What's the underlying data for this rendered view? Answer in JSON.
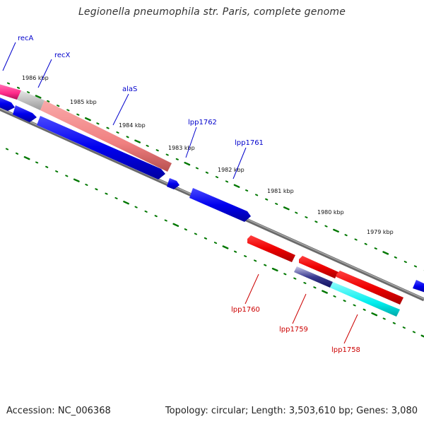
{
  "title": "Legionella pneumophila str. Paris, complete genome",
  "footer": {
    "accession": "Accession: NC_006368",
    "summary": "Topology: circular; Length: 3,503,610 bp; Genes: 3,080"
  },
  "colors": {
    "forward_cds": "#0000ee",
    "reverse_cds": "#ee0000",
    "rna": "#ff2b8a",
    "pseudo": "#c8c8c8",
    "highlight_red": "#f08080",
    "highlight_cyan": "#00eeee",
    "backbone": "#808080",
    "tick": "#007700",
    "label_forward": "#0000cc",
    "label_reverse": "#cc0000"
  },
  "ticks": [
    "1986 kbp",
    "1985 kbp",
    "1984 kbp",
    "1983 kbp",
    "1982 kbp",
    "1981 kbp",
    "1980 kbp",
    "1979 kbp"
  ],
  "genes_forward": [
    "recA",
    "recX",
    "alaS",
    "lpp1762",
    "lpp1761"
  ],
  "genes_reverse": [
    "lpp1760",
    "lpp1759",
    "lpp1758"
  ]
}
